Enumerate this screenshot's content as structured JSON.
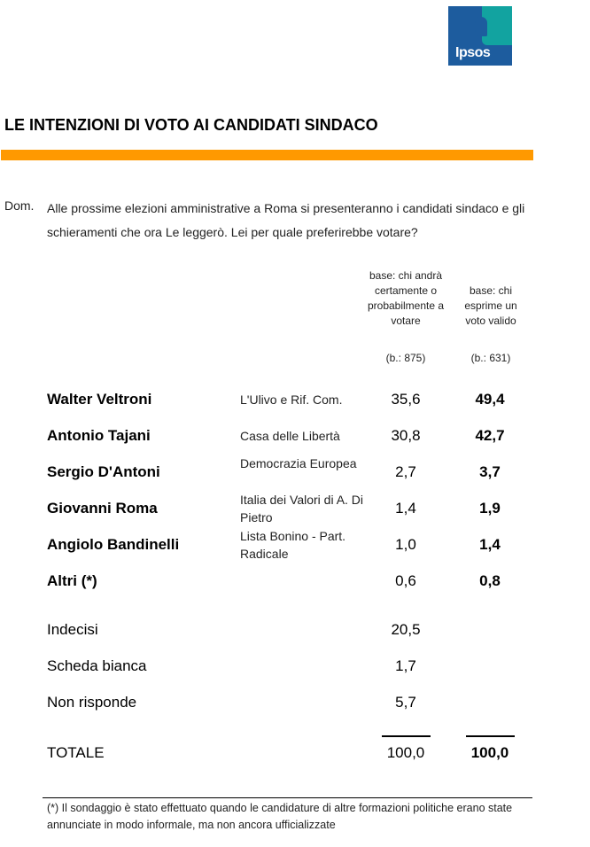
{
  "logo": {
    "brand": "Ipsos"
  },
  "title": "LE INTENZIONI DI VOTO AI CANDIDATI SINDACO",
  "question": {
    "label": "Dom.",
    "text": "Alle prossime elezioni amministrative a Roma si presenteranno i candidati sindaco e gli schieramenti che ora Le leggerò. Lei per quale preferirebbe votare?"
  },
  "columns": {
    "col1_header": "base: chi andrà certamente o probabilmente a votare",
    "col1_base": "(b.: 875)",
    "col2_header": "base: chi esprime un voto valido",
    "col2_base": "(b.: 631)"
  },
  "candidates": [
    {
      "name": "Walter Veltroni",
      "party": "L'Ulivo e Rif. Com.",
      "v1": "35,6",
      "v2": "49,4"
    },
    {
      "name": "Antonio Tajani",
      "party": "Casa delle Libertà",
      "v1": "30,8",
      "v2": "42,7"
    },
    {
      "name": "Sergio D'Antoni",
      "party": "Democrazia Europea",
      "v1": "2,7",
      "v2": "3,7"
    },
    {
      "name": "Giovanni Roma",
      "party": "Italia dei Valori di A. Di Pietro",
      "v1": "1,4",
      "v2": "1,9"
    },
    {
      "name": "Angiolo Bandinelli",
      "party": "Lista Bonino - Part. Radicale",
      "v1": "1,0",
      "v2": "1,4"
    },
    {
      "name": "Altri (*)",
      "party": "",
      "v1": "0,6",
      "v2": "0,8"
    }
  ],
  "others": [
    {
      "label": "Indecisi",
      "v1": "20,5"
    },
    {
      "label": "Scheda bianca",
      "v1": "1,7"
    },
    {
      "label": "Non risponde",
      "v1": "5,7"
    }
  ],
  "total": {
    "label": "TOTALE",
    "v1": "100,0",
    "v2": "100,0"
  },
  "footnote": "(*) Il sondaggio è stato effettuato quando le candidature di altre formazioni politiche erano state annunciate in modo informale, ma non ancora ufficializzate"
}
